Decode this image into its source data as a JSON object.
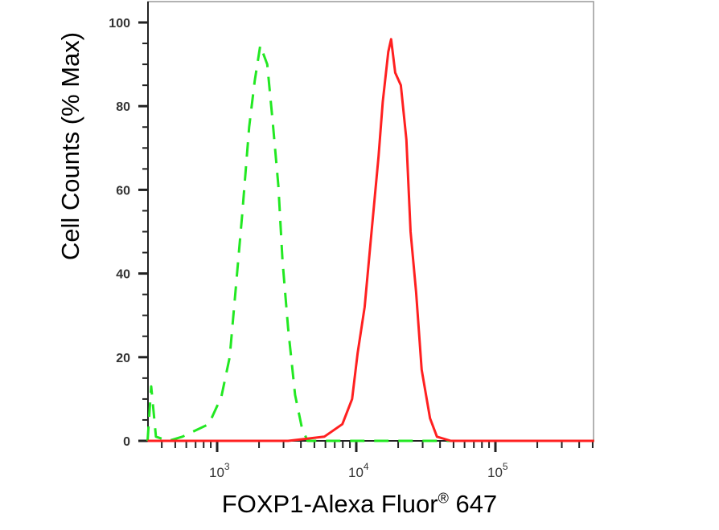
{
  "chart_data": {
    "type": "line",
    "title": "",
    "xlabel": "FOXP1-Alexa Fluor",
    "xlabel_mark": "®",
    "xlabel_suffix": "647",
    "ylabel": "Cell Counts (% Max)",
    "xscale": "log",
    "xlim": [
      316,
      510000
    ],
    "ylim": [
      0,
      100
    ],
    "grid": false,
    "legend": "none",
    "yticks": [
      "0",
      "20",
      "40",
      "60",
      "80",
      "100"
    ],
    "xticks": [
      {
        "base": "10",
        "exp": "3"
      },
      {
        "base": "10",
        "exp": "4"
      },
      {
        "base": "10",
        "exp": "5"
      }
    ],
    "series": [
      {
        "style": "dashed",
        "color": "#22e822",
        "log10_x": [
          2.5,
          2.526,
          2.56,
          2.65,
          2.75,
          2.94,
          3.03,
          3.09,
          3.13,
          3.18,
          3.23,
          3.27,
          3.31,
          3.36,
          3.4,
          3.44,
          3.47,
          3.51,
          3.56,
          3.61,
          3.65,
          5.71
        ],
        "y": [
          0,
          13,
          1,
          0,
          1,
          4,
          10.5,
          20,
          35,
          54,
          75,
          86,
          94.5,
          90,
          76,
          61,
          43,
          27,
          11,
          3,
          0,
          0
        ]
      },
      {
        "style": "solid",
        "color": "#ff2020",
        "log10_x": [
          2.5,
          3.51,
          3.77,
          3.9,
          3.97,
          4.01,
          4.06,
          4.11,
          4.16,
          4.19,
          4.23,
          4.25,
          4.28,
          4.32,
          4.36,
          4.39,
          4.43,
          4.47,
          4.53,
          4.58,
          4.68,
          5.71
        ],
        "y": [
          0,
          0,
          1,
          4,
          10,
          21,
          32,
          50,
          68,
          81,
          93,
          96,
          88,
          85,
          72,
          50,
          35.5,
          17,
          5.4,
          1,
          0,
          0
        ]
      }
    ]
  }
}
